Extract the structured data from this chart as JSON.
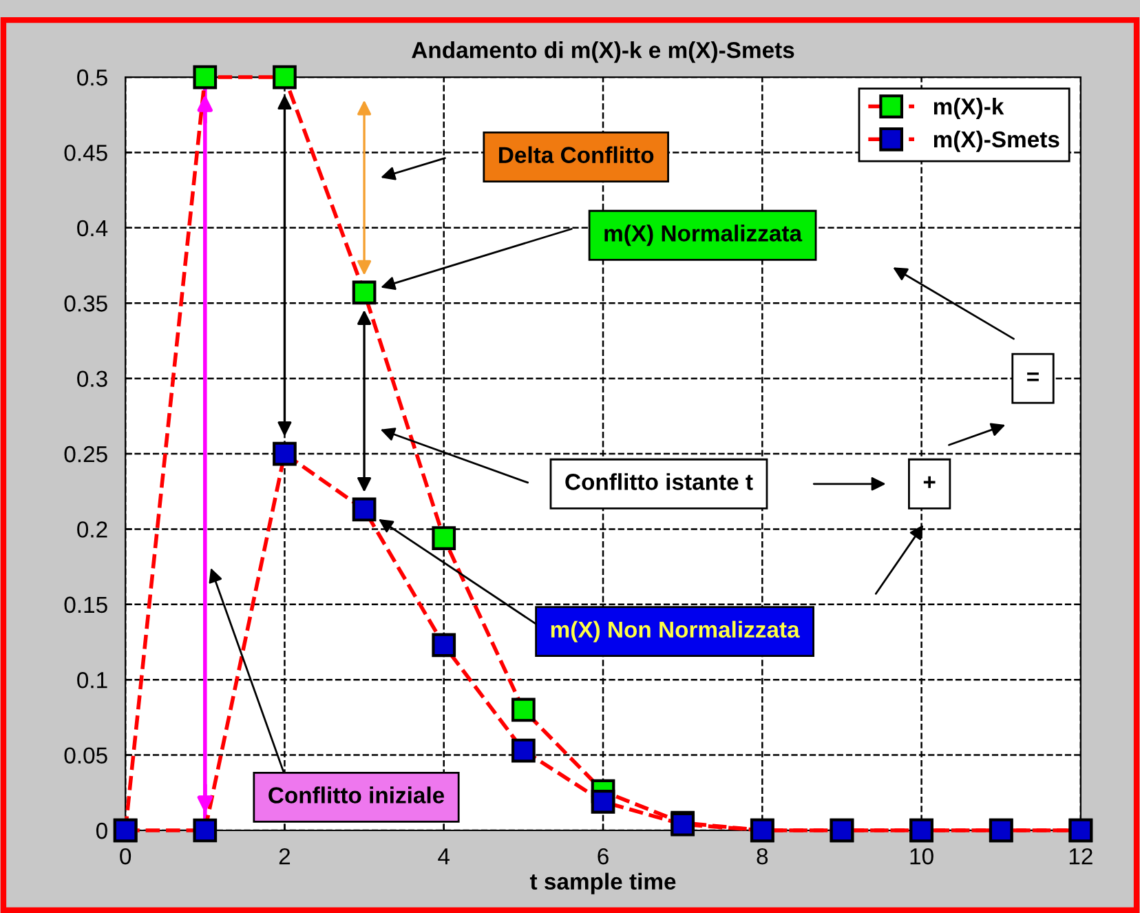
{
  "chart_data": {
    "type": "line",
    "title": "Andamento di m(X)-k e m(X)-Smets",
    "xlabel": "t sample time",
    "x": [
      0,
      1,
      2,
      3,
      4,
      5,
      6,
      7,
      8,
      9,
      10,
      11,
      12
    ],
    "series": [
      {
        "name": "m(X)-k",
        "color": "#00ee00",
        "values": [
          0,
          0.5,
          0.5,
          0.357,
          0.194,
          0.08,
          0.026,
          0.005,
          0,
          0,
          0,
          0,
          0
        ]
      },
      {
        "name": "m(X)-Smets",
        "color": "#0000cc",
        "values": [
          0,
          0,
          0.25,
          0.213,
          0.123,
          0.053,
          0.019,
          0.004,
          0,
          0,
          0,
          0,
          0
        ]
      }
    ],
    "ref_lines": [
      {
        "axis": "x",
        "value": 1,
        "color": "#ff00ff",
        "line_style": "solid"
      }
    ],
    "xlim": [
      0,
      12
    ],
    "ylim": [
      0,
      0.5
    ],
    "xticks": [
      0,
      2,
      4,
      6,
      8,
      10,
      12
    ],
    "yticks": [
      0,
      0.05,
      0.1,
      0.15,
      0.2,
      0.25,
      0.3,
      0.35,
      0.4,
      0.45,
      0.5
    ],
    "grid": true,
    "legend": "top right",
    "marker": "square",
    "line_style": "dashed",
    "annotations": [
      "Delta Conflitto",
      "m(X) Normalizzata",
      "Conflitto istante t",
      "m(X) Non Normalizzata",
      "Conflitto iniziale",
      "+",
      "="
    ]
  }
}
